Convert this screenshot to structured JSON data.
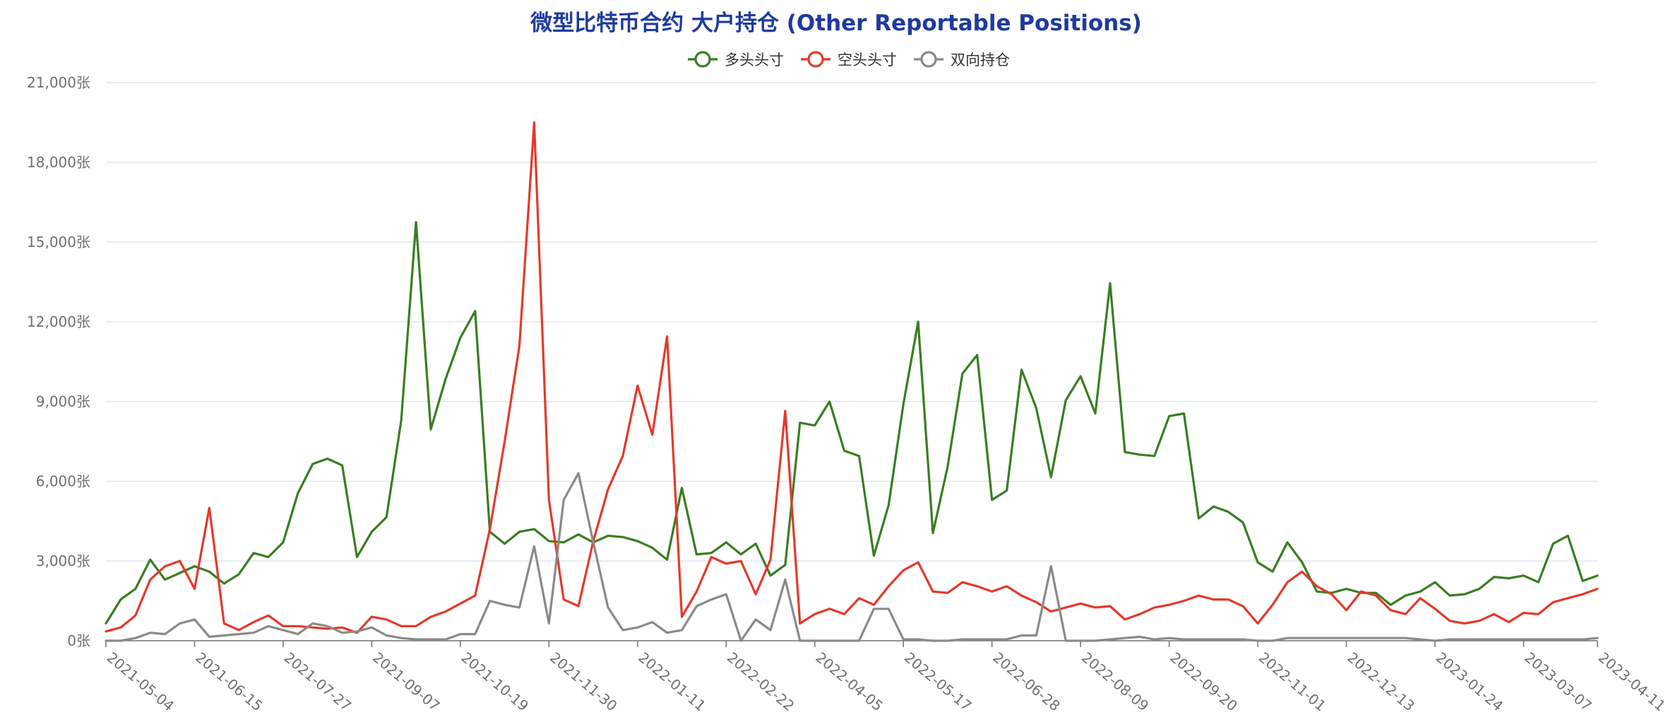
{
  "chart_data": {
    "type": "line",
    "title": "微型比特币合约 大户持仓 (Other Reportable Positions)",
    "y_unit_suffix": "张",
    "ylim": [
      0,
      21000
    ],
    "y_ticks": [
      "0张",
      "3,000张",
      "6,000张",
      "9,000张",
      "12,000张",
      "15,000张",
      "18,000张",
      "21,000张"
    ],
    "x_tick_labels": [
      "2021-05-04",
      "2021-06-15",
      "2021-07-27",
      "2021-09-07",
      "2021-10-19",
      "2021-11-30",
      "2022-01-11",
      "2022-02-22",
      "2022-04-05",
      "2022-05-17",
      "2022-06-28",
      "2022-08-09",
      "2022-09-20",
      "2022-11-01",
      "2022-12-13",
      "2023-01-24",
      "2023-03-07",
      "2023-04-11"
    ],
    "x_tick_index": [
      0,
      6,
      12,
      18,
      24,
      30,
      36,
      42,
      48,
      54,
      60,
      66,
      72,
      78,
      84,
      90,
      96,
      101
    ],
    "grid": true,
    "legend_position": "top-center",
    "series": [
      {
        "name": "多头头寸",
        "color": "#3a7d22",
        "values": [
          650,
          1550,
          1950,
          3050,
          2300,
          2550,
          2800,
          2600,
          2150,
          2500,
          3300,
          3150,
          3700,
          5550,
          6650,
          6850,
          6600,
          3150,
          4100,
          4650,
          8300,
          15750,
          7950,
          9850,
          11400,
          12400,
          4100,
          3650,
          4100,
          4200,
          3750,
          3700,
          4000,
          3700,
          3950,
          3900,
          3750,
          3500,
          3050,
          5750,
          3250,
          3300,
          3700,
          3250,
          3650,
          2450,
          2850,
          8200,
          8100,
          9000,
          7150,
          6950,
          3200,
          5100,
          8900,
          12000,
          4050,
          6550,
          10050,
          10750,
          5300,
          5650,
          10200,
          8750,
          6150,
          9050,
          9950,
          8550,
          13450,
          7100,
          7000,
          6950,
          8450,
          8550,
          4600,
          5050,
          4850,
          4450,
          2950,
          2600,
          3700,
          2950,
          1850,
          1800,
          1950,
          1800,
          1800,
          1350,
          1700,
          1850,
          2200,
          1700,
          1750,
          1950,
          2400,
          2350,
          2450,
          2200,
          3650,
          3950,
          2250,
          2450
        ]
      },
      {
        "name": "空头头寸",
        "color": "#e4392b",
        "values": [
          350,
          500,
          950,
          2300,
          2800,
          3000,
          1950,
          5000,
          650,
          400,
          700,
          950,
          550,
          550,
          500,
          450,
          500,
          300,
          900,
          800,
          550,
          550,
          900,
          1100,
          1400,
          1700,
          4200,
          7500,
          11100,
          19500,
          5300,
          1550,
          1300,
          3750,
          5700,
          6950,
          9600,
          7750,
          11450,
          900,
          1850,
          3150,
          2900,
          3000,
          1750,
          3050,
          8650,
          650,
          1000,
          1200,
          1000,
          1600,
          1350,
          2050,
          2650,
          2950,
          1850,
          1800,
          2200,
          2050,
          1850,
          2050,
          1700,
          1450,
          1100,
          1250,
          1400,
          1250,
          1300,
          800,
          1000,
          1250,
          1350,
          1500,
          1700,
          1550,
          1550,
          1300,
          650,
          1350,
          2200,
          2600,
          2050,
          1750,
          1150,
          1850,
          1700,
          1150,
          1000,
          1600,
          1200,
          750,
          650,
          750,
          1000,
          700,
          1050,
          1000,
          1450,
          1600,
          1750,
          1950
        ]
      },
      {
        "name": "双向持仓",
        "color": "#8a8a8a",
        "values": [
          0,
          0,
          100,
          300,
          250,
          650,
          800,
          150,
          200,
          250,
          300,
          550,
          400,
          250,
          650,
          550,
          300,
          350,
          500,
          200,
          100,
          50,
          50,
          50,
          250,
          250,
          1500,
          1350,
          1250,
          3550,
          650,
          5300,
          6300,
          3700,
          1250,
          400,
          500,
          700,
          300,
          400,
          1300,
          1550,
          1750,
          0,
          800,
          400,
          2300,
          0,
          0,
          0,
          0,
          0,
          1200,
          1200,
          50,
          50,
          0,
          0,
          50,
          50,
          50,
          50,
          200,
          200,
          2800,
          0,
          0,
          0,
          50,
          100,
          150,
          50,
          100,
          50,
          50,
          50,
          50,
          50,
          0,
          0,
          100,
          100,
          100,
          100,
          100,
          100,
          100,
          100,
          100,
          50,
          0,
          50,
          50,
          50,
          50,
          50,
          50,
          50,
          50,
          50,
          50,
          100
        ]
      }
    ]
  }
}
